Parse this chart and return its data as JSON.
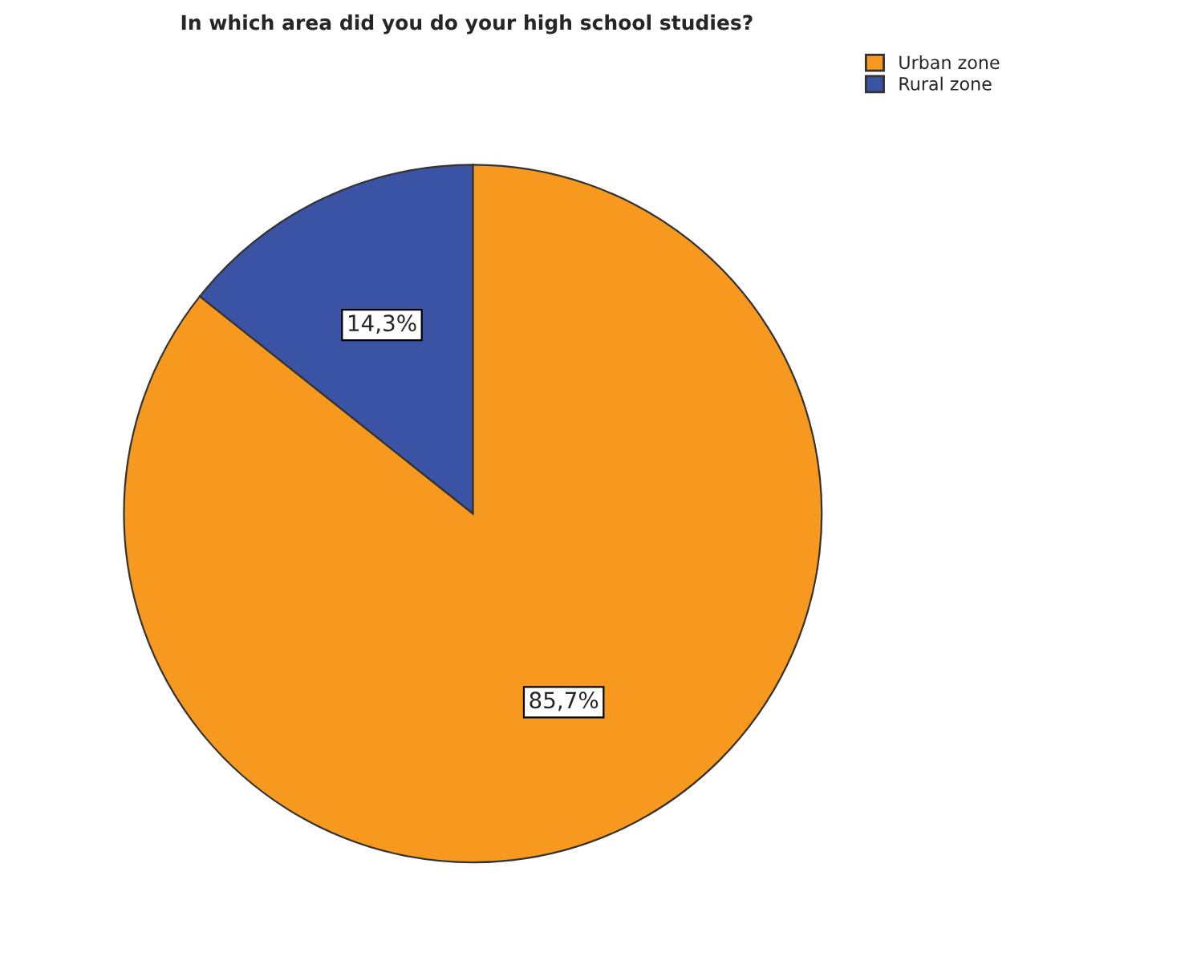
{
  "chart_data": {
    "type": "pie",
    "title": "In which area did you do your high school studies?",
    "categories": [
      "Urban zone",
      "Rural zone"
    ],
    "values": [
      85.7,
      14.3
    ],
    "value_labels": [
      "85,7%",
      "14,3%"
    ],
    "colors": [
      "#f7991f",
      "#3b53a4"
    ],
    "legend": "top right"
  }
}
